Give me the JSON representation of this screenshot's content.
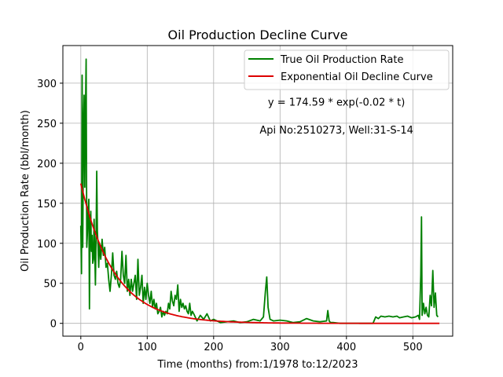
{
  "chart_data": {
    "type": "line",
    "title": "Oil Production Decline Curve",
    "xlabel": "Time (months) from:1/1978 to:12/2023",
    "ylabel": "Oil Production Rate (bbl/month)",
    "xlim": [
      -27,
      560
    ],
    "ylim": [
      -16,
      347
    ],
    "xticks": [
      0,
      100,
      200,
      300,
      400,
      500
    ],
    "yticks": [
      0,
      50,
      100,
      150,
      200,
      250,
      300
    ],
    "grid": true,
    "legend_position": "top-right",
    "annotations": [
      {
        "text": "y = 174.59 * exp(-0.02 * t)",
        "x": 385,
        "y": 272
      },
      {
        "text": "Api No:2510273, Well:31-S-14",
        "x": 385,
        "y": 237
      }
    ],
    "series": [
      {
        "name": "True Oil Production Rate",
        "color": "#008000",
        "x": [
          0,
          1,
          2,
          3,
          4,
          5,
          6,
          7,
          8,
          9,
          10,
          11,
          12,
          13,
          14,
          15,
          16,
          17,
          18,
          19,
          20,
          21,
          22,
          23,
          24,
          25,
          26,
          27,
          28,
          30,
          32,
          34,
          36,
          38,
          40,
          42,
          44,
          46,
          48,
          50,
          52,
          54,
          56,
          58,
          60,
          62,
          64,
          66,
          68,
          70,
          72,
          74,
          76,
          78,
          80,
          82,
          84,
          86,
          88,
          90,
          92,
          94,
          96,
          98,
          100,
          102,
          104,
          106,
          108,
          110,
          112,
          114,
          116,
          118,
          120,
          122,
          124,
          126,
          128,
          130,
          132,
          134,
          136,
          138,
          140,
          142,
          144,
          146,
          148,
          150,
          152,
          154,
          156,
          158,
          160,
          162,
          164,
          166,
          168,
          170,
          175,
          180,
          185,
          190,
          195,
          200,
          210,
          220,
          230,
          240,
          250,
          260,
          270,
          275,
          278,
          280,
          282,
          285,
          290,
          300,
          310,
          320,
          330,
          340,
          350,
          360,
          370,
          372,
          374,
          376,
          380,
          390,
          400,
          410,
          420,
          430,
          440,
          442,
          444,
          448,
          452,
          458,
          464,
          470,
          476,
          480,
          486,
          492,
          498,
          504,
          508,
          510,
          512,
          513,
          514,
          516,
          518,
          520,
          522,
          524,
          526,
          528,
          530,
          532,
          534,
          536,
          538
        ],
        "y": [
          122,
          62,
          310,
          95,
          250,
          285,
          170,
          262,
          330,
          95,
          115,
          140,
          155,
          18,
          120,
          140,
          90,
          110,
          75,
          80,
          130,
          90,
          48,
          105,
          190,
          115,
          95,
          70,
          100,
          80,
          105,
          85,
          95,
          70,
          75,
          55,
          40,
          60,
          88,
          60,
          55,
          65,
          50,
          45,
          55,
          90,
          60,
          50,
          85,
          40,
          55,
          35,
          55,
          40,
          50,
          60,
          30,
          80,
          35,
          45,
          60,
          25,
          45,
          30,
          50,
          35,
          25,
          40,
          20,
          30,
          18,
          25,
          12,
          15,
          20,
          8,
          15,
          10,
          15,
          12,
          25,
          18,
          40,
          28,
          22,
          35,
          30,
          48,
          15,
          30,
          20,
          25,
          18,
          22,
          15,
          12,
          25,
          10,
          15,
          12,
          3,
          10,
          5,
          12,
          3,
          5,
          1,
          2,
          3,
          1,
          2,
          5,
          3,
          8,
          40,
          58,
          20,
          5,
          3,
          4,
          3,
          1,
          2,
          6,
          3,
          2,
          3,
          16,
          3,
          1,
          1,
          0,
          0,
          0,
          0,
          0,
          0,
          4,
          8,
          6,
          9,
          8,
          9,
          8,
          9,
          7,
          8,
          9,
          7,
          8,
          10,
          5,
          60,
          133,
          10,
          25,
          12,
          20,
          10,
          8,
          35,
          22,
          66,
          20,
          38,
          10,
          8
        ]
      },
      {
        "name": "Exponential Oil Decline Curve",
        "color": "#dd0000",
        "function": "174.59 * exp(-0.02 * t)",
        "x_range": [
          0,
          540
        ]
      }
    ]
  }
}
